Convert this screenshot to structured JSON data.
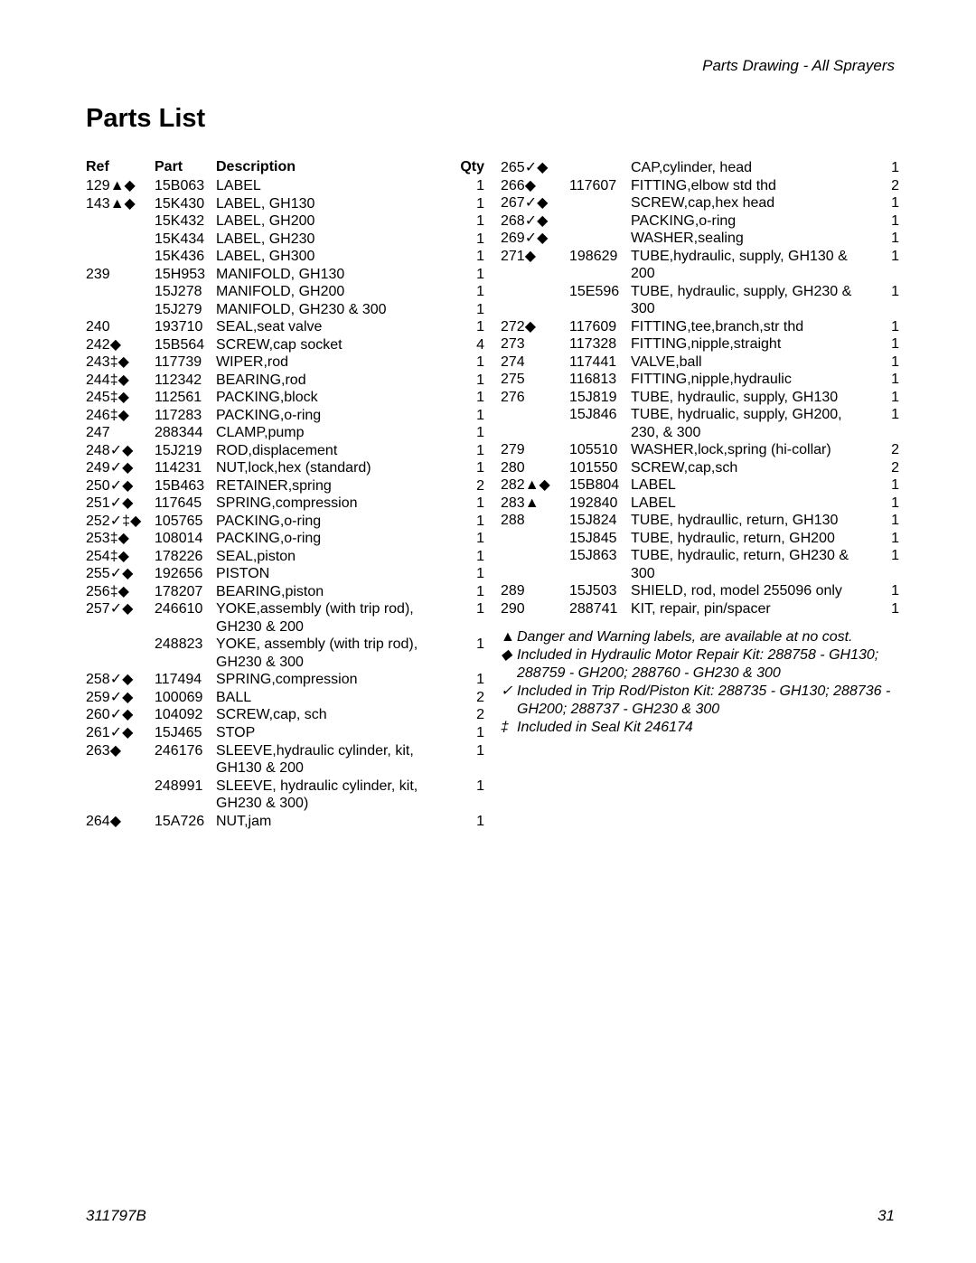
{
  "headerRight": "Parts Drawing - All Sprayers",
  "title": "Parts List",
  "headers": {
    "ref": "Ref",
    "part": "Part",
    "desc": "Description",
    "qty": "Qty"
  },
  "leftRows": [
    {
      "ref": "129▲◆",
      "part": "15B063",
      "desc": "LABEL",
      "qty": "1"
    },
    {
      "ref": "143▲◆",
      "part": "15K430",
      "desc": "LABEL, GH130",
      "qty": "1"
    },
    {
      "ref": "",
      "part": "15K432",
      "desc": "LABEL, GH200",
      "qty": "1"
    },
    {
      "ref": "",
      "part": "15K434",
      "desc": "LABEL, GH230",
      "qty": "1"
    },
    {
      "ref": "",
      "part": "15K436",
      "desc": "LABEL, GH300",
      "qty": "1"
    },
    {
      "ref": "239",
      "part": "15H953",
      "desc": "MANIFOLD, GH130",
      "qty": "1"
    },
    {
      "ref": "",
      "part": "15J278",
      "desc": "MANIFOLD, GH200",
      "qty": "1"
    },
    {
      "ref": "",
      "part": "15J279",
      "desc": "MANIFOLD, GH230 & 300",
      "qty": "1"
    },
    {
      "ref": "240",
      "part": "193710",
      "desc": "SEAL,seat valve",
      "qty": "1"
    },
    {
      "ref": "242◆",
      "part": "15B564",
      "desc": "SCREW,cap socket",
      "qty": "4"
    },
    {
      "ref": "243‡◆",
      "part": "117739",
      "desc": "WIPER,rod",
      "qty": "1"
    },
    {
      "ref": "244‡◆",
      "part": "112342",
      "desc": "BEARING,rod",
      "qty": "1"
    },
    {
      "ref": "245‡◆",
      "part": "112561",
      "desc": "PACKING,block",
      "qty": "1"
    },
    {
      "ref": "246‡◆",
      "part": "117283",
      "desc": "PACKING,o-ring",
      "qty": "1"
    },
    {
      "ref": "247",
      "part": "288344",
      "desc": "CLAMP,pump",
      "qty": "1"
    },
    {
      "ref": "248✓◆",
      "part": "15J219",
      "desc": "ROD,displacement",
      "qty": "1"
    },
    {
      "ref": "249✓◆",
      "part": "114231",
      "desc": "NUT,lock,hex (standard)",
      "qty": "1"
    },
    {
      "ref": "250✓◆",
      "part": "15B463",
      "desc": "RETAINER,spring",
      "qty": "2"
    },
    {
      "ref": "251✓◆",
      "part": "117645",
      "desc": "SPRING,compression",
      "qty": "1"
    },
    {
      "ref": "252✓‡◆",
      "part": "105765",
      "desc": "PACKING,o-ring",
      "qty": "1"
    },
    {
      "ref": "253‡◆",
      "part": "108014",
      "desc": "PACKING,o-ring",
      "qty": "1"
    },
    {
      "ref": "254‡◆",
      "part": "178226",
      "desc": "SEAL,piston",
      "qty": "1"
    },
    {
      "ref": "255✓◆",
      "part": "192656",
      "desc": "PISTON",
      "qty": "1"
    },
    {
      "ref": "256‡◆",
      "part": "178207",
      "desc": "BEARING,piston",
      "qty": "1"
    },
    {
      "ref": "257✓◆",
      "part": "246610",
      "desc": "YOKE,assembly (with trip rod), GH230 & 200",
      "qty": "1"
    },
    {
      "ref": "",
      "part": "248823",
      "desc": "YOKE, assembly (with trip rod), GH230 & 300",
      "qty": "1"
    },
    {
      "ref": "258✓◆",
      "part": "117494",
      "desc": "SPRING,compression",
      "qty": "1"
    },
    {
      "ref": "259✓◆",
      "part": "100069",
      "desc": "BALL",
      "qty": "2"
    },
    {
      "ref": "260✓◆",
      "part": "104092",
      "desc": "SCREW,cap, sch",
      "qty": "2"
    },
    {
      "ref": "261✓◆",
      "part": "15J465",
      "desc": "STOP",
      "qty": "1"
    },
    {
      "ref": "263◆",
      "part": "246176",
      "desc": "SLEEVE,hydraulic cylinder, kit, GH130 & 200",
      "qty": "1"
    },
    {
      "ref": "",
      "part": "248991",
      "desc": "SLEEVE, hydraulic cylinder, kit, GH230 & 300)",
      "qty": "1"
    },
    {
      "ref": "264◆",
      "part": "15A726",
      "desc": "NUT,jam",
      "qty": "1"
    }
  ],
  "rightRows": [
    {
      "ref": "265✓◆",
      "part": "",
      "desc": "CAP,cylinder, head",
      "qty": "1"
    },
    {
      "ref": "266◆",
      "part": "117607",
      "desc": "FITTING,elbow std thd",
      "qty": "2"
    },
    {
      "ref": "267✓◆",
      "part": "",
      "desc": "SCREW,cap,hex head",
      "qty": "1"
    },
    {
      "ref": "268✓◆",
      "part": "",
      "desc": "PACKING,o-ring",
      "qty": "1"
    },
    {
      "ref": "269✓◆",
      "part": "",
      "desc": "WASHER,sealing",
      "qty": "1"
    },
    {
      "ref": "271◆",
      "part": "198629",
      "desc": "TUBE,hydraulic, supply, GH130 & 200",
      "qty": "1"
    },
    {
      "ref": "",
      "part": "15E596",
      "desc": "TUBE, hydraulic, supply, GH230 & 300",
      "qty": "1"
    },
    {
      "ref": "272◆",
      "part": "117609",
      "desc": "FITTING,tee,branch,str thd",
      "qty": "1"
    },
    {
      "ref": "273",
      "part": "117328",
      "desc": "FITTING,nipple,straight",
      "qty": "1"
    },
    {
      "ref": "274",
      "part": "117441",
      "desc": "VALVE,ball",
      "qty": "1"
    },
    {
      "ref": "275",
      "part": "116813",
      "desc": "FITTING,nipple,hydraulic",
      "qty": "1"
    },
    {
      "ref": "276",
      "part": "15J819",
      "desc": "TUBE, hydraulic, supply, GH130",
      "qty": "1"
    },
    {
      "ref": "",
      "part": "15J846",
      "desc": "TUBE, hydrualic, supply, GH200, 230, & 300",
      "qty": "1"
    },
    {
      "ref": "279",
      "part": "105510",
      "desc": "WASHER,lock,spring (hi-collar)",
      "qty": "2"
    },
    {
      "ref": "280",
      "part": "101550",
      "desc": "SCREW,cap,sch",
      "qty": "2"
    },
    {
      "ref": "282▲◆",
      "part": "15B804",
      "desc": "LABEL",
      "qty": "1"
    },
    {
      "ref": "283▲",
      "part": "192840",
      "desc": "LABEL",
      "qty": "1"
    },
    {
      "ref": "288",
      "part": "15J824",
      "desc": "TUBE, hydraullic, return, GH130",
      "qty": "1"
    },
    {
      "ref": "",
      "part": "15J845",
      "desc": "TUBE, hydraulic, return, GH200",
      "qty": "1"
    },
    {
      "ref": "",
      "part": "15J863",
      "desc": "TUBE, hydraulic, return, GH230 & 300",
      "qty": "1"
    },
    {
      "ref": "289",
      "part": "15J503",
      "desc": "SHIELD, rod, model 255096 only",
      "qty": "1"
    },
    {
      "ref": "290",
      "part": "288741",
      "desc": "KIT, repair, pin/spacer",
      "qty": "1"
    }
  ],
  "notes": [
    {
      "sym": "▲",
      "txt": "Danger and Warning labels, are available at no cost."
    },
    {
      "sym": "◆",
      "txt": "Included in Hydraulic Motor Repair Kit: 288758 - GH130; 288759 - GH200; 288760 - GH230 & 300"
    },
    {
      "sym": "✓",
      "txt": "Included in Trip Rod/Piston Kit: 288735 - GH130; 288736 - GH200; 288737 - GH230 & 300"
    },
    {
      "sym": "‡",
      "txt": "Included in Seal Kit 246174"
    }
  ],
  "footerLeft": "311797B",
  "footerRight": "31"
}
